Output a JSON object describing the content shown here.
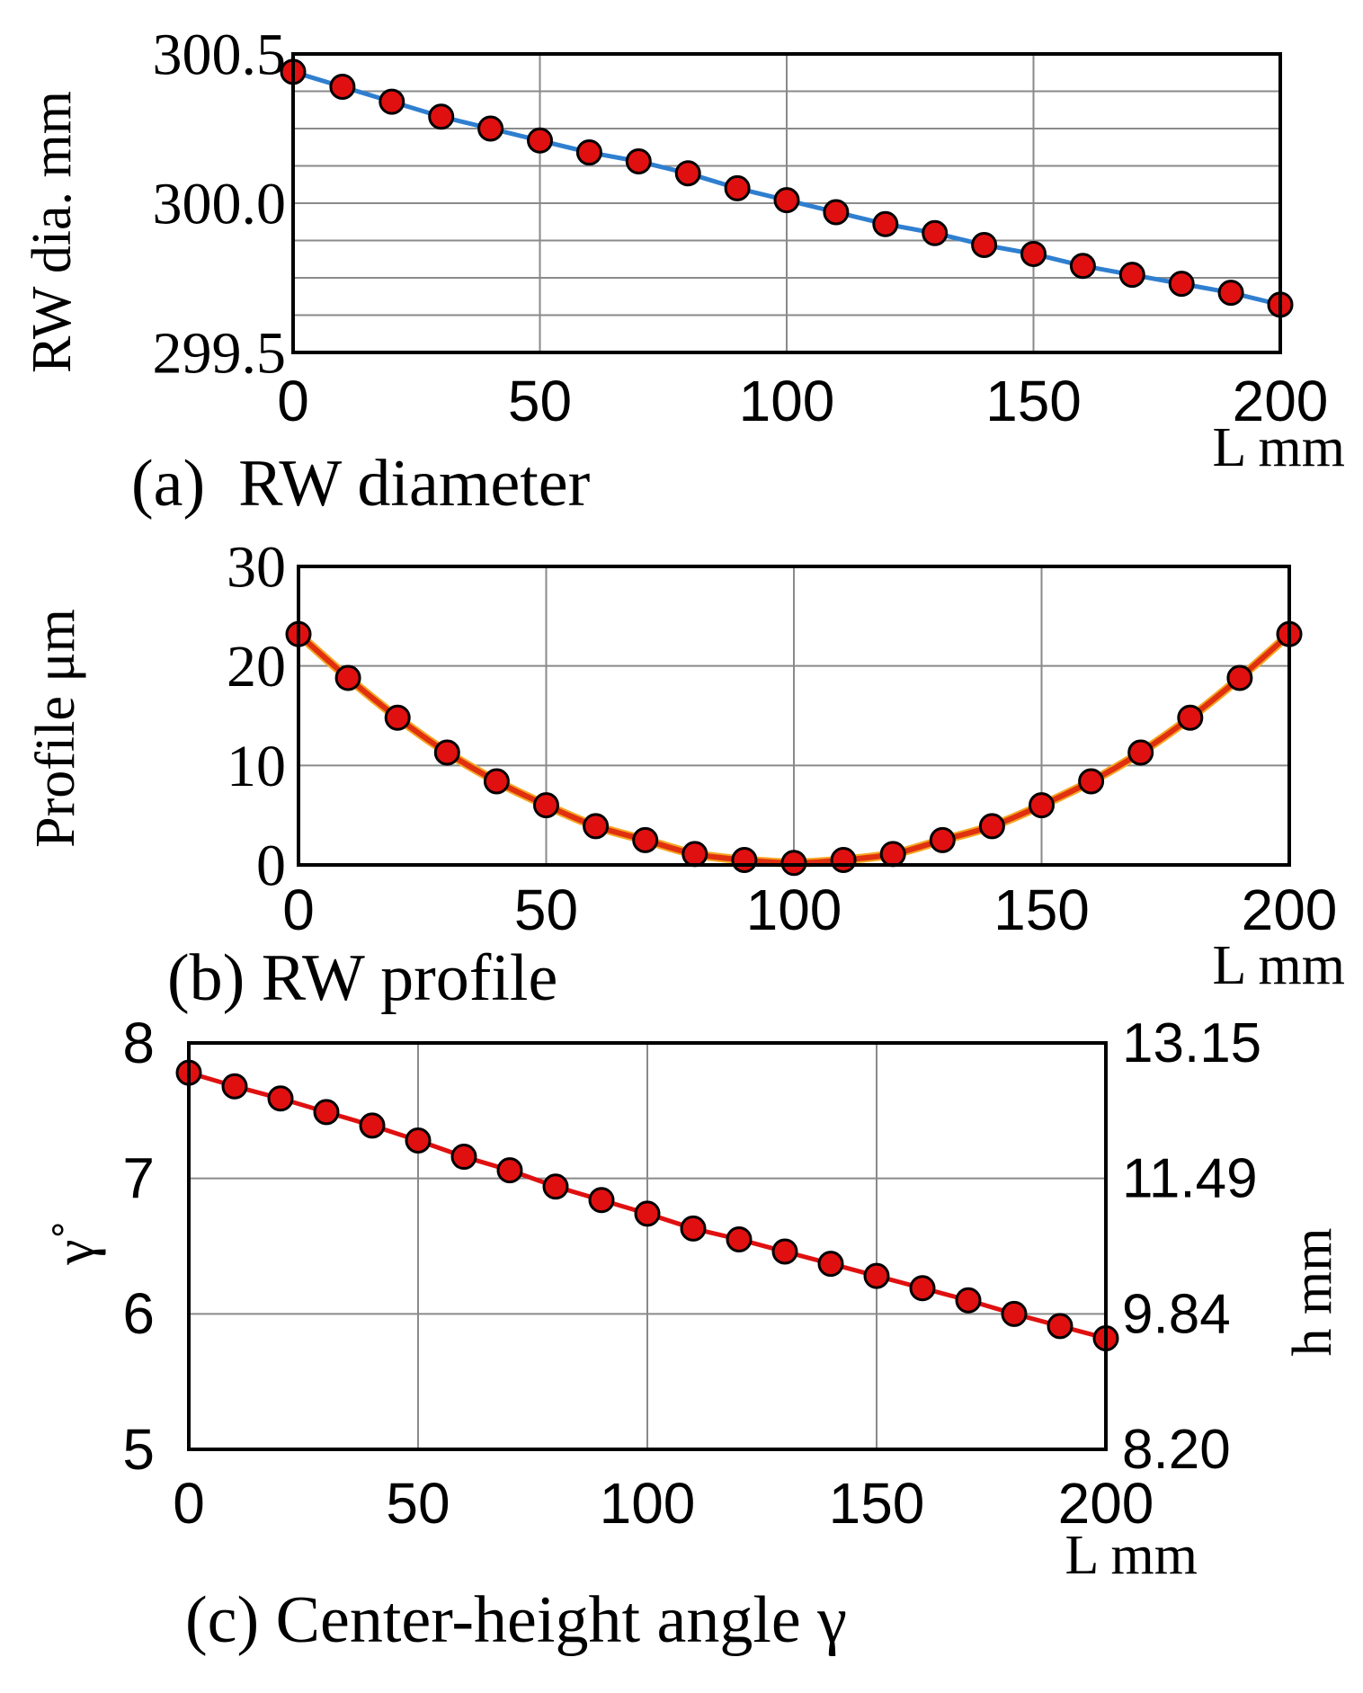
{
  "chart_data": [
    {
      "type": "line",
      "caption": "(a)  RW diameter",
      "ylabel": "RW dia. mm",
      "xlabel": "L mm",
      "xlim": [
        0,
        200
      ],
      "ylim": [
        299.5,
        300.5
      ],
      "xticks": [
        "0",
        "50",
        "100",
        "150",
        "200"
      ],
      "yticks": [
        "299.5",
        "300.0",
        "300.5"
      ],
      "grid": true,
      "line_color": "#2f7fd0",
      "marker_color": "#e01010",
      "x": [
        0,
        10,
        20,
        30,
        40,
        50,
        60,
        70,
        80,
        90,
        100,
        110,
        120,
        130,
        140,
        150,
        160,
        170,
        180,
        190,
        200
      ],
      "series": [
        {
          "values": [
            300.44,
            300.39,
            300.34,
            300.29,
            300.25,
            300.21,
            300.17,
            300.14,
            300.1,
            300.05,
            300.01,
            299.97,
            299.93,
            299.9,
            299.86,
            299.83,
            299.79,
            299.76,
            299.73,
            299.7,
            299.66
          ]
        }
      ]
    },
    {
      "type": "line",
      "caption": "(b) RW profile",
      "ylabel": "Profile μm",
      "xlabel": "L mm",
      "xlim": [
        0,
        200
      ],
      "ylim": [
        0,
        30
      ],
      "xticks": [
        "0",
        "50",
        "100",
        "150",
        "200"
      ],
      "yticks": [
        "0",
        "10",
        "20",
        "30"
      ],
      "grid": true,
      "line_color": "#e03010",
      "marker_color": "#e01010",
      "x": [
        0,
        10,
        20,
        30,
        40,
        50,
        60,
        70,
        80,
        90,
        100,
        110,
        120,
        130,
        140,
        150,
        160,
        170,
        180,
        190,
        200
      ],
      "series": [
        {
          "values": [
            23.2,
            18.8,
            14.8,
            11.3,
            8.4,
            6.0,
            3.9,
            2.5,
            1.1,
            0.5,
            0.2,
            0.5,
            1.1,
            2.5,
            3.9,
            6.0,
            8.4,
            11.3,
            14.8,
            18.8,
            23.2
          ]
        }
      ]
    },
    {
      "type": "line",
      "caption": "(c) Center-height angle γ",
      "ylabel": "γ˚",
      "y2label": "h mm",
      "xlabel": "L mm",
      "xlim": [
        0,
        200
      ],
      "ylim": [
        5,
        8
      ],
      "y2lim": [
        8.2,
        13.15
      ],
      "xticks": [
        "0",
        "50",
        "100",
        "150",
        "200"
      ],
      "yticks": [
        "5",
        "6",
        "7",
        "8"
      ],
      "y2ticks": [
        "8.20",
        "9.84",
        "11.49",
        "13.15"
      ],
      "grid": true,
      "line_color": "#e01010",
      "marker_color": "#e01010",
      "x": [
        0,
        10,
        20,
        30,
        40,
        50,
        60,
        70,
        80,
        90,
        100,
        110,
        120,
        130,
        140,
        150,
        160,
        170,
        180,
        190,
        200
      ],
      "series": [
        {
          "values": [
            7.78,
            7.68,
            7.59,
            7.49,
            7.39,
            7.28,
            7.16,
            7.06,
            6.94,
            6.84,
            6.74,
            6.63,
            6.55,
            6.46,
            6.37,
            6.28,
            6.19,
            6.1,
            6.0,
            5.91,
            5.82
          ]
        }
      ]
    }
  ]
}
